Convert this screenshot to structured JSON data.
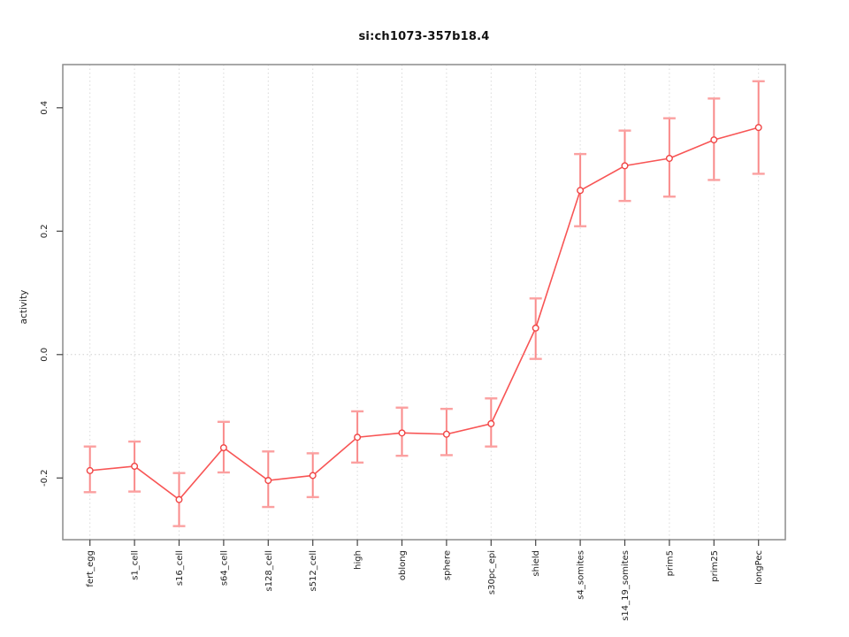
{
  "page": {
    "background": "#ffffff"
  },
  "chart_data": {
    "type": "line",
    "title": "si:ch1073-357b18.4",
    "ylabel": "activity",
    "xlabel": "",
    "legend_position": "none",
    "grid": {
      "vertical_per_category": true,
      "horizontal_at_zero": true
    },
    "categories": [
      "fert_egg",
      "s1_cell",
      "s16_cell",
      "s64_cell",
      "s128_cell",
      "s512_cell",
      "high",
      "oblong",
      "sphere",
      "s30pc_epi",
      "shield",
      "s4_somites",
      "s14_19_somites",
      "prim5",
      "prim25",
      "longPec"
    ],
    "series": [
      {
        "name": "activity",
        "values": [
          -0.188,
          -0.181,
          -0.235,
          -0.151,
          -0.204,
          -0.196,
          -0.134,
          -0.127,
          -0.129,
          -0.112,
          0.043,
          0.266,
          0.306,
          0.318,
          0.348,
          0.368
        ],
        "lower": [
          -0.223,
          -0.222,
          -0.278,
          -0.191,
          -0.247,
          -0.231,
          -0.175,
          -0.164,
          -0.163,
          -0.149,
          -0.007,
          0.208,
          0.249,
          0.256,
          0.283,
          0.293
        ],
        "upper": [
          -0.149,
          -0.141,
          -0.192,
          -0.109,
          -0.157,
          -0.16,
          -0.092,
          -0.086,
          -0.088,
          -0.071,
          0.091,
          0.325,
          0.363,
          0.383,
          0.415,
          0.443
        ]
      }
    ],
    "yticks": [
      {
        "v": -0.2,
        "label": "-0.2"
      },
      {
        "v": 0.0,
        "label": "0.0"
      },
      {
        "v": 0.2,
        "label": "0.2"
      },
      {
        "v": 0.4,
        "label": "0.4"
      }
    ],
    "ylim": [
      -0.3,
      0.47
    ],
    "colors": {
      "line": "#f85555",
      "point_stroke": "#f04545",
      "point_fill": "#ffffff",
      "error_bar": "#f98a8a",
      "error_cap": "#fba0a0",
      "grid": "#d9d9d9",
      "zero_line": "#cfcfcf",
      "box": "#8c8c8c",
      "tick": "#444444",
      "tick_label": "#222222"
    }
  }
}
